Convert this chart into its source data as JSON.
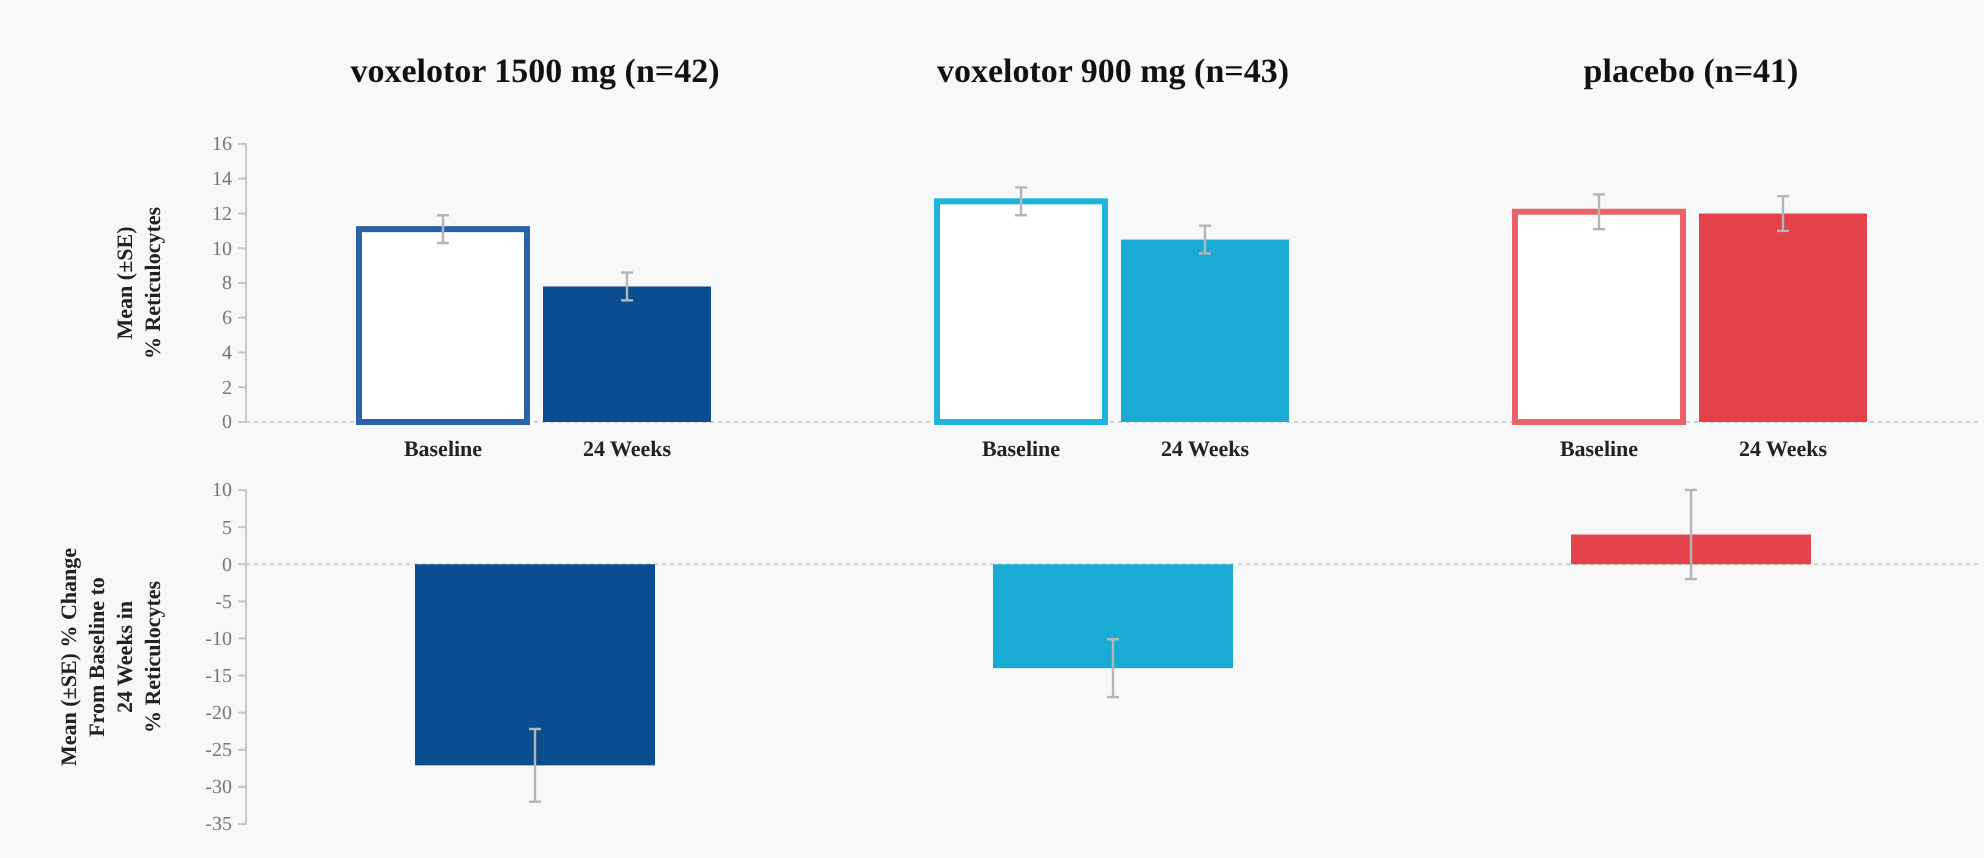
{
  "chart_data": [
    {
      "type": "bar",
      "ylabel": "Mean (±SE)\n% Reticulocytes",
      "categories": [
        "voxelotor 1500 mg (n=42)",
        "voxelotor 900 mg (n=43)",
        "placebo (n=41)"
      ],
      "series": [
        {
          "name": "Baseline",
          "colors": [
            "#2a62a8",
            "#1fb4dc",
            "#e8646b"
          ],
          "values": [
            11.1,
            12.7,
            12.1
          ],
          "errors": [
            0.8,
            0.8,
            1.0
          ]
        },
        {
          "name": "24 Weeks",
          "colors": [
            "#0b4e90",
            "#1aabd4",
            "#e2434b"
          ],
          "values": [
            7.8,
            10.5,
            12.0
          ],
          "errors": [
            0.8,
            0.8,
            1.0
          ]
        }
      ],
      "ylim": [
        0,
        16
      ],
      "yticks": [
        0,
        2,
        4,
        6,
        8,
        10,
        12,
        14,
        16
      ]
    },
    {
      "type": "bar",
      "ylabel": "Mean (±SE) % Change\nFrom Baseline to\n24 Weeks in\n% Reticulocytes",
      "categories": [
        null,
        null,
        null
      ],
      "values": [
        -27.1,
        -14.0,
        4.0
      ],
      "errors": [
        4.9,
        3.9,
        6.0
      ],
      "colors": [
        "#0b4e90",
        "#1aabd4",
        "#e2434b"
      ],
      "ylim": [
        -35,
        10
      ],
      "yticks": [
        -35,
        -30,
        -25,
        -20,
        -15,
        -10,
        -5,
        0,
        5,
        10
      ]
    }
  ]
}
